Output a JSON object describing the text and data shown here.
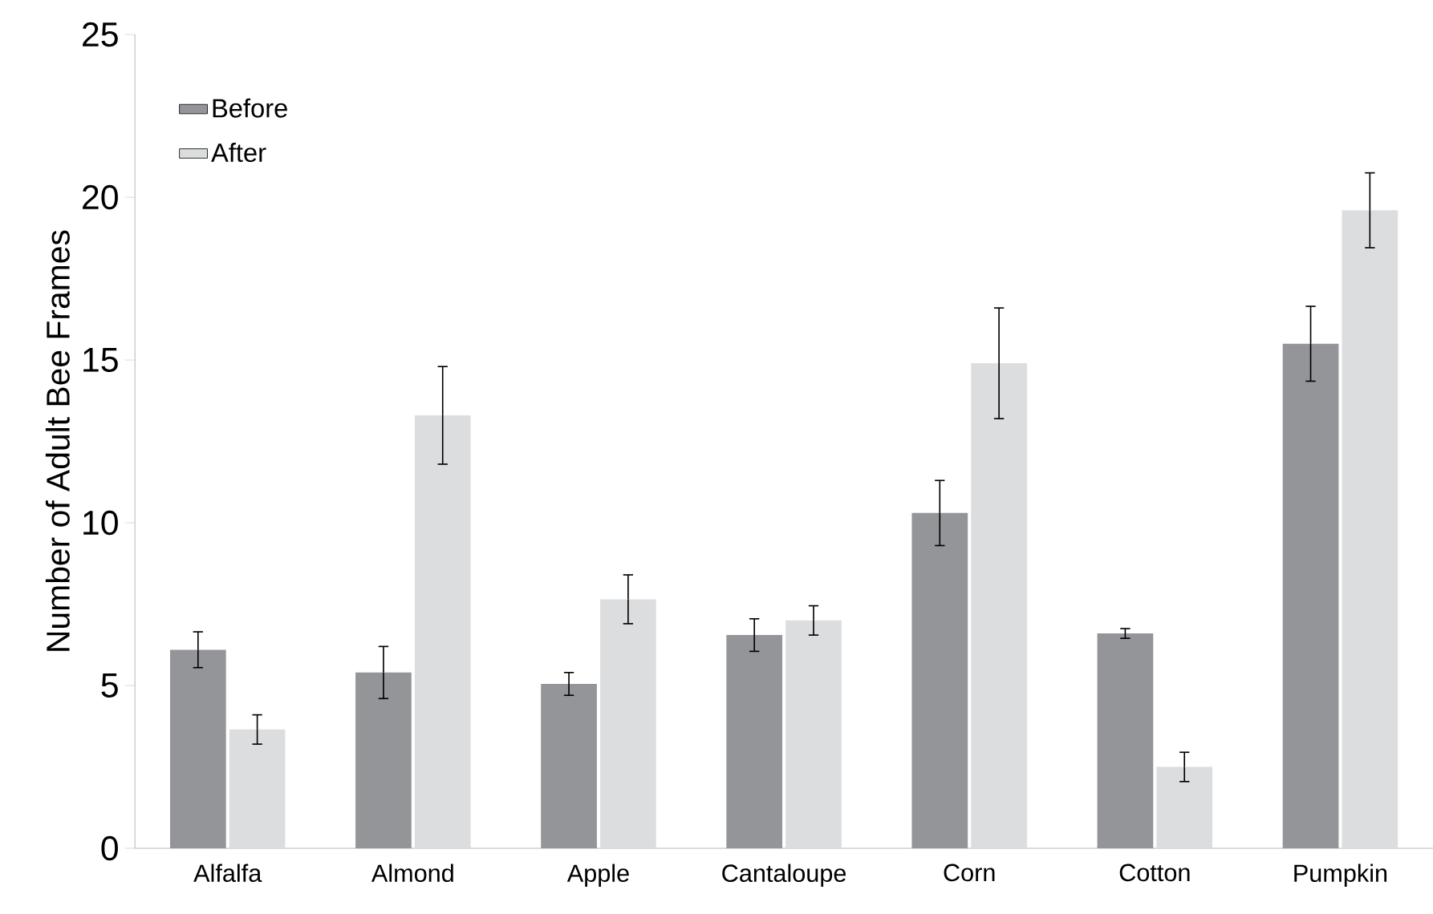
{
  "chart_data": {
    "type": "bar",
    "ylabel": "Number of Adult Bee Frames",
    "categories": [
      "Alfalfa",
      "Almond",
      "Apple",
      "Cantaloupe",
      "Corn",
      "Cotton",
      "Pumpkin"
    ],
    "series": [
      {
        "name": "Before",
        "color": "#939598",
        "values": [
          6.1,
          5.4,
          5.05,
          6.55,
          10.3,
          6.6,
          15.5
        ],
        "errors": [
          0.55,
          0.8,
          0.35,
          0.5,
          1.0,
          0.15,
          1.15
        ]
      },
      {
        "name": "After",
        "color": "#dcdddf",
        "values": [
          3.65,
          13.3,
          7.65,
          7.0,
          14.9,
          2.5,
          19.6
        ],
        "errors": [
          0.45,
          1.5,
          0.75,
          0.45,
          1.7,
          0.45,
          1.15
        ]
      }
    ],
    "ylim": [
      0,
      25
    ],
    "yticks": [
      0,
      5,
      10,
      15,
      20,
      25
    ],
    "grid": false,
    "legend": "top left"
  }
}
